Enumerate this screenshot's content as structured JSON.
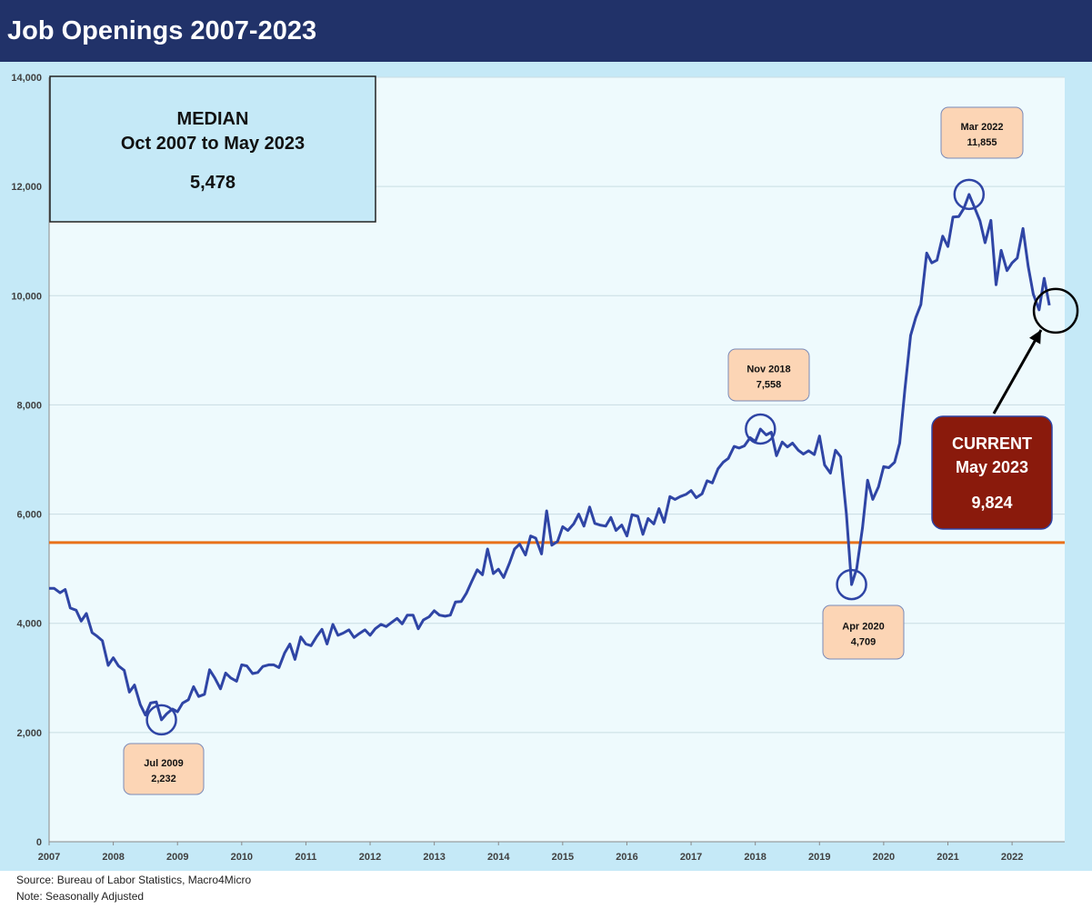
{
  "header": {
    "title": "Job Openings 2007-2023"
  },
  "footer": {
    "source": "Source: Bureau of Labor Statistics, Macro4Micro",
    "note": "Note: Seasonally Adjusted"
  },
  "colors": {
    "series": "#2f45a5",
    "median_line": "#e8711a",
    "title_bar": "#213269",
    "plot_bg": "#eefafd",
    "outer_bg": "#c5e9f7",
    "callout_bg": "#fcd5b5",
    "current_bg": "#8a1a0c"
  },
  "median_box": {
    "line1": "MEDIAN",
    "line2": "Oct 2007 to May 2023",
    "value": "5,478"
  },
  "annotations": [
    {
      "key": "jul2009",
      "label": "Jul 2009",
      "value": "2,232"
    },
    {
      "key": "nov2018",
      "label": "Nov 2018",
      "value": "7,558"
    },
    {
      "key": "apr2020",
      "label": "Apr 2020",
      "value": "4,709"
    },
    {
      "key": "mar2022",
      "label": "Mar 2022",
      "value": "11,855"
    }
  ],
  "current_box": {
    "line1": "CURRENT",
    "line2": "May 2023",
    "value": "9,824"
  },
  "chart_data": {
    "type": "line",
    "title": "Job Openings 2007-2023",
    "xlabel": "",
    "ylabel": "",
    "grid": true,
    "x_ticks": [
      "2007",
      "2008",
      "2009",
      "2010",
      "2011",
      "2012",
      "2013",
      "2014",
      "2015",
      "2016",
      "2017",
      "2018",
      "2019",
      "2020",
      "2021",
      "2022"
    ],
    "y_ticks": [
      "0",
      "2,000",
      "4,000",
      "6,000",
      "8,000",
      "10,000",
      "12,000",
      "14,000"
    ],
    "ylim": [
      0,
      14000
    ],
    "xlim": [
      2007,
      2022.82
    ],
    "median": 5478,
    "series": [
      {
        "values": [
          [
            2007.0,
            4640
          ],
          [
            2007.08,
            4640
          ],
          [
            2007.17,
            4560
          ],
          [
            2007.25,
            4620
          ],
          [
            2007.33,
            4280
          ],
          [
            2007.42,
            4240
          ],
          [
            2007.5,
            4040
          ],
          [
            2007.58,
            4180
          ],
          [
            2007.67,
            3830
          ],
          [
            2007.75,
            3760
          ],
          [
            2007.83,
            3680
          ],
          [
            2007.92,
            3230
          ],
          [
            2008.0,
            3370
          ],
          [
            2008.08,
            3220
          ],
          [
            2008.17,
            3140
          ],
          [
            2008.25,
            2740
          ],
          [
            2008.33,
            2870
          ],
          [
            2008.42,
            2510
          ],
          [
            2008.5,
            2320
          ],
          [
            2008.58,
            2540
          ],
          [
            2008.67,
            2560
          ],
          [
            2008.75,
            2232
          ],
          [
            2008.83,
            2340
          ],
          [
            2008.92,
            2430
          ],
          [
            2009.0,
            2380
          ],
          [
            2009.08,
            2540
          ],
          [
            2009.17,
            2600
          ],
          [
            2009.25,
            2840
          ],
          [
            2009.33,
            2660
          ],
          [
            2009.42,
            2700
          ],
          [
            2009.5,
            3150
          ],
          [
            2009.58,
            3000
          ],
          [
            2009.67,
            2800
          ],
          [
            2009.75,
            3090
          ],
          [
            2009.83,
            3000
          ],
          [
            2009.92,
            2940
          ],
          [
            2010.0,
            3240
          ],
          [
            2010.08,
            3220
          ],
          [
            2010.17,
            3080
          ],
          [
            2010.25,
            3100
          ],
          [
            2010.33,
            3210
          ],
          [
            2010.42,
            3240
          ],
          [
            2010.5,
            3240
          ],
          [
            2010.58,
            3190
          ],
          [
            2010.67,
            3460
          ],
          [
            2010.75,
            3620
          ],
          [
            2010.83,
            3340
          ],
          [
            2010.92,
            3750
          ],
          [
            2011.0,
            3620
          ],
          [
            2011.08,
            3590
          ],
          [
            2011.17,
            3760
          ],
          [
            2011.25,
            3890
          ],
          [
            2011.33,
            3620
          ],
          [
            2011.42,
            3980
          ],
          [
            2011.5,
            3780
          ],
          [
            2011.58,
            3820
          ],
          [
            2011.67,
            3880
          ],
          [
            2011.75,
            3740
          ],
          [
            2011.83,
            3810
          ],
          [
            2011.92,
            3880
          ],
          [
            2012.0,
            3780
          ],
          [
            2012.08,
            3900
          ],
          [
            2012.17,
            3980
          ],
          [
            2012.25,
            3940
          ],
          [
            2012.33,
            4010
          ],
          [
            2012.42,
            4090
          ],
          [
            2012.5,
            3990
          ],
          [
            2012.58,
            4150
          ],
          [
            2012.67,
            4150
          ],
          [
            2012.75,
            3900
          ],
          [
            2012.83,
            4060
          ],
          [
            2012.92,
            4120
          ],
          [
            2013.0,
            4230
          ],
          [
            2013.08,
            4150
          ],
          [
            2013.17,
            4130
          ],
          [
            2013.25,
            4150
          ],
          [
            2013.33,
            4390
          ],
          [
            2013.42,
            4400
          ],
          [
            2013.5,
            4550
          ],
          [
            2013.58,
            4760
          ],
          [
            2013.67,
            4980
          ],
          [
            2013.75,
            4890
          ],
          [
            2013.83,
            5360
          ],
          [
            2013.92,
            4910
          ],
          [
            2014.0,
            4990
          ],
          [
            2014.08,
            4840
          ],
          [
            2014.17,
            5100
          ],
          [
            2014.25,
            5360
          ],
          [
            2014.33,
            5450
          ],
          [
            2014.42,
            5250
          ],
          [
            2014.5,
            5600
          ],
          [
            2014.58,
            5560
          ],
          [
            2014.67,
            5270
          ],
          [
            2014.75,
            6060
          ],
          [
            2014.83,
            5430
          ],
          [
            2014.92,
            5500
          ],
          [
            2015.0,
            5770
          ],
          [
            2015.08,
            5700
          ],
          [
            2015.17,
            5820
          ],
          [
            2015.25,
            6000
          ],
          [
            2015.33,
            5780
          ],
          [
            2015.42,
            6130
          ],
          [
            2015.5,
            5830
          ],
          [
            2015.58,
            5800
          ],
          [
            2015.67,
            5780
          ],
          [
            2015.75,
            5940
          ],
          [
            2015.83,
            5700
          ],
          [
            2015.92,
            5800
          ],
          [
            2016.0,
            5600
          ],
          [
            2016.08,
            5990
          ],
          [
            2016.17,
            5960
          ],
          [
            2016.25,
            5630
          ],
          [
            2016.33,
            5920
          ],
          [
            2016.42,
            5820
          ],
          [
            2016.5,
            6100
          ],
          [
            2016.58,
            5850
          ],
          [
            2016.67,
            6320
          ],
          [
            2016.75,
            6270
          ],
          [
            2016.83,
            6320
          ],
          [
            2016.92,
            6360
          ],
          [
            2017.0,
            6430
          ],
          [
            2017.08,
            6300
          ],
          [
            2017.17,
            6370
          ],
          [
            2017.25,
            6610
          ],
          [
            2017.33,
            6570
          ],
          [
            2017.42,
            6830
          ],
          [
            2017.5,
            6950
          ],
          [
            2017.58,
            7020
          ],
          [
            2017.67,
            7240
          ],
          [
            2017.75,
            7210
          ],
          [
            2017.83,
            7250
          ],
          [
            2017.92,
            7400
          ],
          [
            2018.0,
            7330
          ],
          [
            2018.08,
            7558
          ],
          [
            2018.17,
            7450
          ],
          [
            2018.25,
            7500
          ],
          [
            2018.33,
            7070
          ],
          [
            2018.42,
            7320
          ],
          [
            2018.5,
            7230
          ],
          [
            2018.58,
            7300
          ],
          [
            2018.67,
            7170
          ],
          [
            2018.75,
            7100
          ],
          [
            2018.83,
            7160
          ],
          [
            2018.92,
            7090
          ],
          [
            2019.0,
            7430
          ],
          [
            2019.08,
            6900
          ],
          [
            2019.17,
            6750
          ],
          [
            2019.25,
            7170
          ],
          [
            2019.33,
            7050
          ],
          [
            2019.42,
            6000
          ],
          [
            2019.5,
            4709
          ],
          [
            2019.58,
            5000
          ],
          [
            2019.67,
            5750
          ],
          [
            2019.75,
            6620
          ],
          [
            2019.83,
            6270
          ],
          [
            2019.92,
            6500
          ],
          [
            2020.0,
            6870
          ],
          [
            2020.08,
            6850
          ],
          [
            2020.17,
            6950
          ],
          [
            2020.25,
            7300
          ],
          [
            2020.33,
            8280
          ],
          [
            2020.42,
            9270
          ],
          [
            2020.5,
            9600
          ],
          [
            2020.58,
            9840
          ],
          [
            2020.67,
            10780
          ],
          [
            2020.75,
            10600
          ],
          [
            2020.83,
            10650
          ],
          [
            2020.92,
            11090
          ],
          [
            2021.0,
            10900
          ],
          [
            2021.08,
            11440
          ],
          [
            2021.17,
            11450
          ],
          [
            2021.25,
            11600
          ],
          [
            2021.33,
            11855
          ],
          [
            2021.42,
            11600
          ],
          [
            2021.5,
            11370
          ],
          [
            2021.58,
            10970
          ],
          [
            2021.67,
            11380
          ],
          [
            2021.75,
            10200
          ],
          [
            2021.83,
            10830
          ],
          [
            2021.92,
            10460
          ],
          [
            2022.0,
            10600
          ],
          [
            2022.08,
            10690
          ],
          [
            2022.17,
            11230
          ],
          [
            2022.25,
            10540
          ],
          [
            2022.33,
            10030
          ],
          [
            2022.42,
            9740
          ],
          [
            2022.5,
            10320
          ],
          [
            2022.58,
            9824
          ]
        ]
      }
    ]
  }
}
